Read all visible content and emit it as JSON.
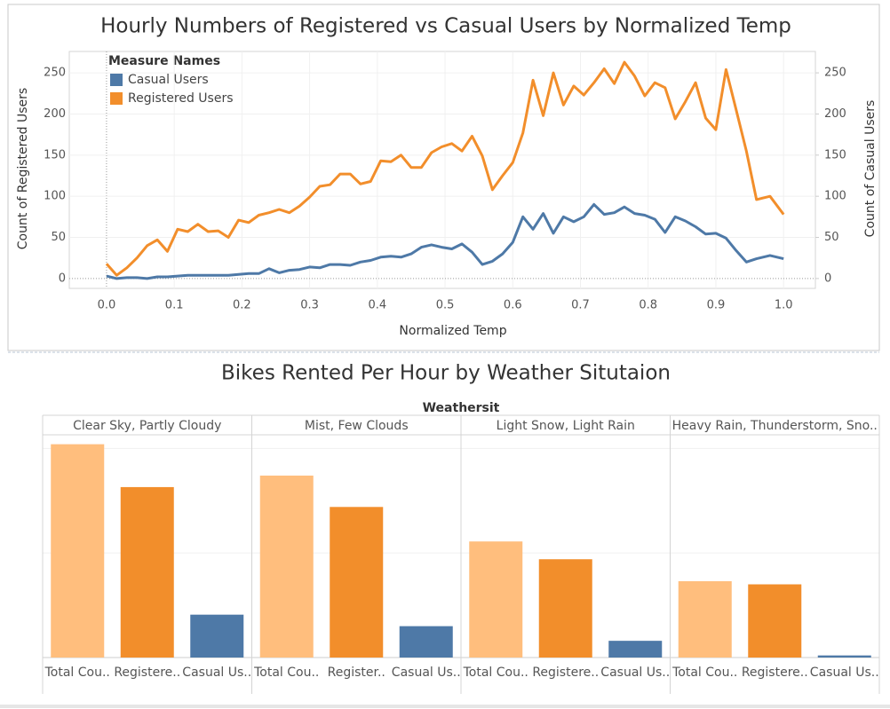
{
  "chart_data": [
    {
      "type": "line",
      "title": "Hourly Numbers of Registered vs Casual Users by Normalized Temp",
      "xlabel": "Normalized Temp",
      "ylabel": "Count of Registered Users",
      "y2label": "Count of Casual Users",
      "legend_title": "Measure Names",
      "legend": "upper left",
      "grid": true,
      "x": [
        0,
        0.015,
        0.03,
        0.045,
        0.06,
        0.075,
        0.09,
        0.105,
        0.12,
        0.135,
        0.15,
        0.165,
        0.18,
        0.195,
        0.21,
        0.225,
        0.24,
        0.255,
        0.27,
        0.285,
        0.3,
        0.315,
        0.33,
        0.345,
        0.36,
        0.375,
        0.39,
        0.405,
        0.42,
        0.435,
        0.45,
        0.465,
        0.48,
        0.495,
        0.51,
        0.525,
        0.54,
        0.555,
        0.57,
        0.585,
        0.6,
        0.615,
        0.63,
        0.645,
        0.66,
        0.675,
        0.69,
        0.705,
        0.72,
        0.735,
        0.75,
        0.765,
        0.78,
        0.795,
        0.81,
        0.825,
        0.84,
        0.855,
        0.87,
        0.885,
        0.9,
        0.915,
        0.93,
        0.945,
        0.96,
        0.98,
        1.0
      ],
      "series": [
        {
          "name": "Casual Users",
          "color": "#4e79a7",
          "axis": "y2",
          "values": [
            3,
            0,
            1,
            1,
            0,
            2,
            2,
            3,
            4,
            4,
            4,
            4,
            4,
            5,
            6,
            6,
            12,
            7,
            10,
            11,
            14,
            13,
            17,
            17,
            16,
            20,
            22,
            26,
            27,
            26,
            30,
            38,
            41,
            38,
            36,
            42,
            32,
            17,
            21,
            30,
            44,
            75,
            60,
            79,
            55,
            75,
            69,
            75,
            90,
            78,
            80,
            87,
            79,
            77,
            72,
            56,
            75,
            70,
            63,
            54,
            55,
            49,
            34,
            20,
            24,
            28,
            24
          ]
        },
        {
          "name": "Registered Users",
          "color": "#f28e2b",
          "values": [
            18,
            4,
            13,
            25,
            40,
            47,
            33,
            60,
            57,
            66,
            57,
            58,
            50,
            71,
            68,
            77,
            80,
            84,
            80,
            88,
            99,
            112,
            114,
            127,
            127,
            115,
            118,
            143,
            142,
            150,
            135,
            135,
            153,
            160,
            164,
            155,
            173,
            149,
            108,
            125,
            141,
            177,
            241,
            198,
            250,
            211,
            234,
            223,
            238,
            255,
            237,
            263,
            246,
            222,
            238,
            232,
            194,
            215,
            238,
            195,
            181,
            254,
            205,
            155,
            96,
            100,
            78
          ]
        }
      ],
      "xlim": [
        -0.055,
        1.047
      ],
      "xticks": [
        {
          "value": 0,
          "label": "0.0"
        },
        0.1,
        0.2,
        0.3,
        0.4,
        0.5,
        0.6,
        0.7,
        0.8,
        0.9,
        {
          "value": 1,
          "label": "1.0"
        }
      ],
      "ylim": [
        -12,
        276
      ],
      "yticks": [
        0,
        50,
        100,
        150,
        200,
        250
      ],
      "y2lim": [
        -12,
        276
      ],
      "y2ticks": [
        0,
        50,
        100,
        150,
        200,
        250
      ]
    },
    {
      "type": "grouped_bar",
      "title": "Bikes Rented Per Hour by Weather Situtaion",
      "group_title": "Weathersit",
      "categories": [
        "Clear Sky, Partly Cloudy",
        "Mist, Few Clouds",
        "Light Snow, Light Rain",
        "Heavy Rain, Thunderstorm, Sno.."
      ],
      "series": [
        {
          "color": "#ffbe7d",
          "labels": [
            "Total Cou..",
            "Total Cou..",
            "Total Cou..",
            "Total Cou.."
          ],
          "values": [
            204,
            174,
            111,
            73
          ]
        },
        {
          "color": "#f28e2b",
          "labels": [
            "Registere..",
            "Register..",
            "Registere..",
            "Registere.."
          ],
          "values": [
            163,
            144,
            94,
            70
          ]
        },
        {
          "color": "#4e79a7",
          "labels": [
            "Casual Us..",
            "Casual Us..",
            "Casual Us..",
            "Casual Us.."
          ],
          "values": [
            41,
            30,
            16,
            2
          ]
        }
      ],
      "ylim": [
        0,
        213
      ],
      "yticks": [
        100,
        200
      ],
      "grid": true,
      "tick_labels": false
    }
  ]
}
